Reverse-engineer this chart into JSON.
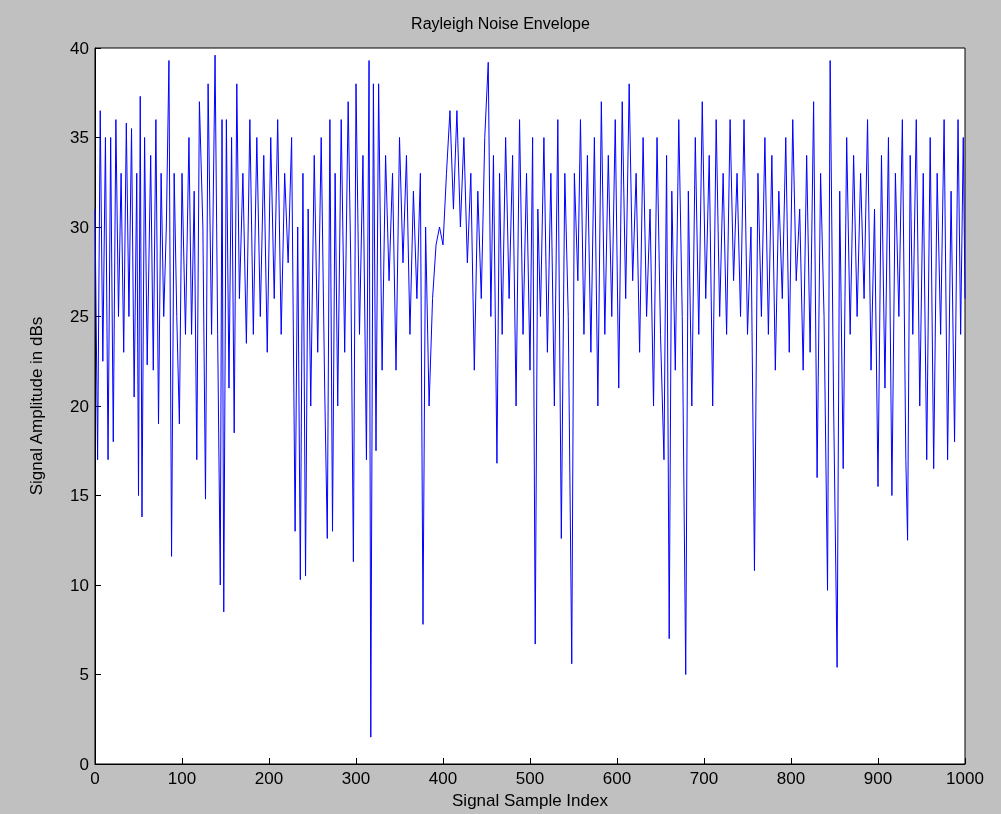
{
  "chart_data": {
    "type": "line",
    "title": "Rayleigh Noise Envelope",
    "xlabel": "Signal Sample Index",
    "ylabel": "Signal Amplitude in dBs",
    "xlim": [
      0,
      1000
    ],
    "xticks": [
      0,
      100,
      200,
      300,
      400,
      500,
      600,
      700,
      800,
      900,
      1000
    ],
    "ylim": [
      0,
      40
    ],
    "yticks": [
      0,
      5,
      10,
      15,
      20,
      25,
      30,
      35,
      40
    ],
    "grid": false,
    "x": [
      0,
      3,
      6,
      9,
      12,
      15,
      18,
      21,
      24,
      27,
      30,
      33,
      36,
      39,
      42,
      45,
      48,
      50,
      52,
      54,
      57,
      60,
      64,
      67,
      70,
      73,
      76,
      79,
      82,
      85,
      88,
      91,
      94,
      97,
      100,
      104,
      108,
      111,
      114,
      117,
      120,
      124,
      127,
      130,
      134,
      138,
      141,
      144,
      146,
      148,
      151,
      154,
      157,
      160,
      163,
      166,
      170,
      174,
      178,
      182,
      186,
      190,
      194,
      198,
      202,
      206,
      210,
      214,
      218,
      222,
      226,
      230,
      233,
      236,
      239,
      242,
      245,
      248,
      252,
      256,
      260,
      264,
      267,
      270,
      273,
      276,
      279,
      283,
      287,
      291,
      294,
      297,
      300,
      304,
      308,
      312,
      315,
      317,
      320,
      323,
      326,
      330,
      334,
      338,
      342,
      346,
      350,
      354,
      358,
      362,
      366,
      370,
      374,
      377,
      380,
      384,
      388,
      392,
      396,
      400,
      404,
      408,
      412,
      416,
      420,
      424,
      428,
      432,
      436,
      440,
      444,
      448,
      452,
      455,
      458,
      462,
      465,
      468,
      472,
      476,
      480,
      484,
      488,
      492,
      496,
      500,
      503,
      506,
      509,
      512,
      516,
      520,
      524,
      528,
      532,
      536,
      540,
      544,
      548,
      551,
      555,
      558,
      562,
      566,
      570,
      574,
      578,
      582,
      586,
      590,
      594,
      598,
      602,
      606,
      610,
      614,
      618,
      622,
      626,
      630,
      634,
      638,
      642,
      646,
      650,
      654,
      657,
      660,
      663,
      667,
      671,
      675,
      679,
      682,
      686,
      690,
      694,
      698,
      702,
      706,
      710,
      714,
      718,
      722,
      726,
      730,
      734,
      738,
      742,
      746,
      750,
      754,
      758,
      762,
      766,
      770,
      774,
      778,
      782,
      786,
      790,
      794,
      798,
      802,
      806,
      810,
      814,
      818,
      822,
      826,
      830,
      834,
      838,
      842,
      845,
      849,
      853,
      856,
      860,
      864,
      868,
      872,
      876,
      880,
      884,
      888,
      892,
      896,
      900,
      904,
      908,
      912,
      916,
      920,
      924,
      928,
      932,
      934,
      937,
      940,
      944,
      948,
      952,
      956,
      960,
      964,
      968,
      972,
      976,
      980,
      984,
      988,
      992,
      995,
      998,
      1000
    ],
    "series": [
      {
        "color": "#0000ff",
        "values": [
          31,
          17,
          36.5,
          22.5,
          35,
          17,
          35,
          18,
          36,
          25,
          33,
          23,
          35.8,
          25,
          35.5,
          20.5,
          33,
          15,
          37.3,
          13.8,
          35,
          22.3,
          34,
          22,
          36,
          19,
          33,
          25,
          30,
          39.3,
          11.6,
          33,
          25,
          19,
          33,
          24,
          35,
          24,
          32,
          17,
          37,
          30,
          14.8,
          38,
          24,
          39.6,
          24,
          10,
          36,
          8.5,
          36,
          21,
          35,
          18.5,
          38,
          26,
          33,
          23.5,
          36,
          24,
          35,
          25,
          34,
          23,
          35,
          26,
          36,
          24,
          33,
          28,
          35,
          13,
          30,
          10.3,
          33,
          10.5,
          31,
          20,
          34,
          23,
          35,
          21,
          12.6,
          36,
          13,
          33,
          20,
          36,
          23,
          37,
          28,
          11.3,
          38,
          24,
          34,
          17,
          39.3,
          1.5,
          38,
          17.5,
          38,
          22,
          34,
          27,
          33,
          22,
          35,
          28,
          34,
          24,
          32,
          26,
          33,
          7.8,
          30,
          20,
          26,
          29,
          30,
          29,
          33,
          36.5,
          31,
          36.5,
          30,
          35,
          28,
          33,
          22,
          32,
          26,
          35,
          39.2,
          25,
          34,
          16.8,
          33,
          24,
          35,
          26,
          34,
          20,
          36,
          24,
          33,
          22,
          35,
          6.7,
          31,
          25,
          35,
          23,
          33,
          20,
          36,
          12.6,
          33,
          25,
          5.6,
          33,
          27,
          36,
          24,
          34,
          23,
          35,
          20,
          37,
          24,
          34,
          25,
          36,
          21,
          37,
          26,
          38,
          27,
          33,
          23,
          35,
          25,
          31,
          20,
          35,
          24,
          17,
          34,
          7,
          32,
          22,
          36,
          25,
          5,
          32,
          20,
          35,
          24,
          37,
          26,
          34,
          20,
          36,
          25,
          33,
          24,
          36,
          27,
          33,
          25,
          36,
          24,
          30,
          10.8,
          33,
          25,
          35,
          24,
          34,
          22,
          32,
          26,
          35,
          23,
          36,
          27,
          31,
          22,
          34,
          23,
          37,
          16,
          33,
          25,
          9.7,
          39.3,
          20,
          5.4,
          32,
          16.5,
          35,
          24,
          34,
          25,
          33,
          26,
          36,
          22,
          31,
          15.5,
          34,
          21,
          35,
          15,
          33,
          25,
          36,
          17,
          12.5,
          34,
          24,
          36,
          20,
          33,
          17,
          35,
          16.5,
          33,
          24,
          36,
          17,
          32,
          18,
          36,
          24,
          35,
          26
        ]
      }
    ]
  }
}
